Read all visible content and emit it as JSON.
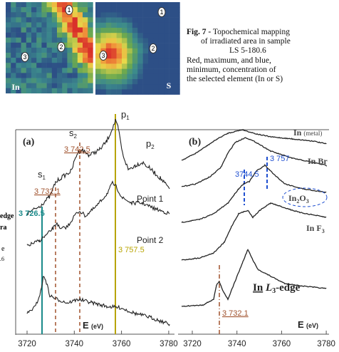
{
  "maps": [
    {
      "element": "In",
      "markers": [
        "1",
        "2",
        "3"
      ]
    },
    {
      "element": "S",
      "markers": [
        "1",
        "2",
        "3"
      ]
    }
  ],
  "caption": {
    "label": "Fig. 7 -",
    "lines": [
      "Topochemical mapping",
      "of irradiated area in sample",
      "LS 5-180.6",
      "Red, maximum, and blue,",
      "minimum, concentration of",
      "the selected element (In or S)"
    ]
  },
  "cut_text": [
    "edge",
    "ra",
    "e",
    ".6"
  ],
  "panel_a": {
    "label": "(a)",
    "peaks": [
      {
        "letter": "p",
        "index": "1"
      },
      {
        "letter": "p",
        "index": "2"
      },
      {
        "letter": "s",
        "index": "1"
      },
      {
        "letter": "s",
        "index": "2"
      }
    ],
    "energies": [
      "3 726.5",
      "3 732.1",
      "3 742.5",
      "3 757.5"
    ],
    "curves": [
      "Point 1",
      "Point 2"
    ],
    "axis": {
      "symbol": "E",
      "unit": "(eV)"
    },
    "ticks": [
      "3720",
      "3740",
      "3760",
      "3780"
    ]
  },
  "panel_b": {
    "label": "(b)",
    "samples": {
      "metal": [
        "In",
        "(metal)"
      ],
      "bromide": [
        "In Br"
      ],
      "oxide": [
        "In",
        "2",
        "O",
        "3"
      ],
      "fluoride": [
        "In F",
        "3"
      ]
    },
    "energies": [
      "3744.5",
      "3 757",
      "3 732.1"
    ],
    "edge": [
      "In",
      "L",
      "3",
      "-edge"
    ],
    "axis": {
      "symbol": "E",
      "unit": "(eV)"
    },
    "ticks": [
      "3720",
      "3740",
      "3760",
      "3780"
    ]
  }
}
